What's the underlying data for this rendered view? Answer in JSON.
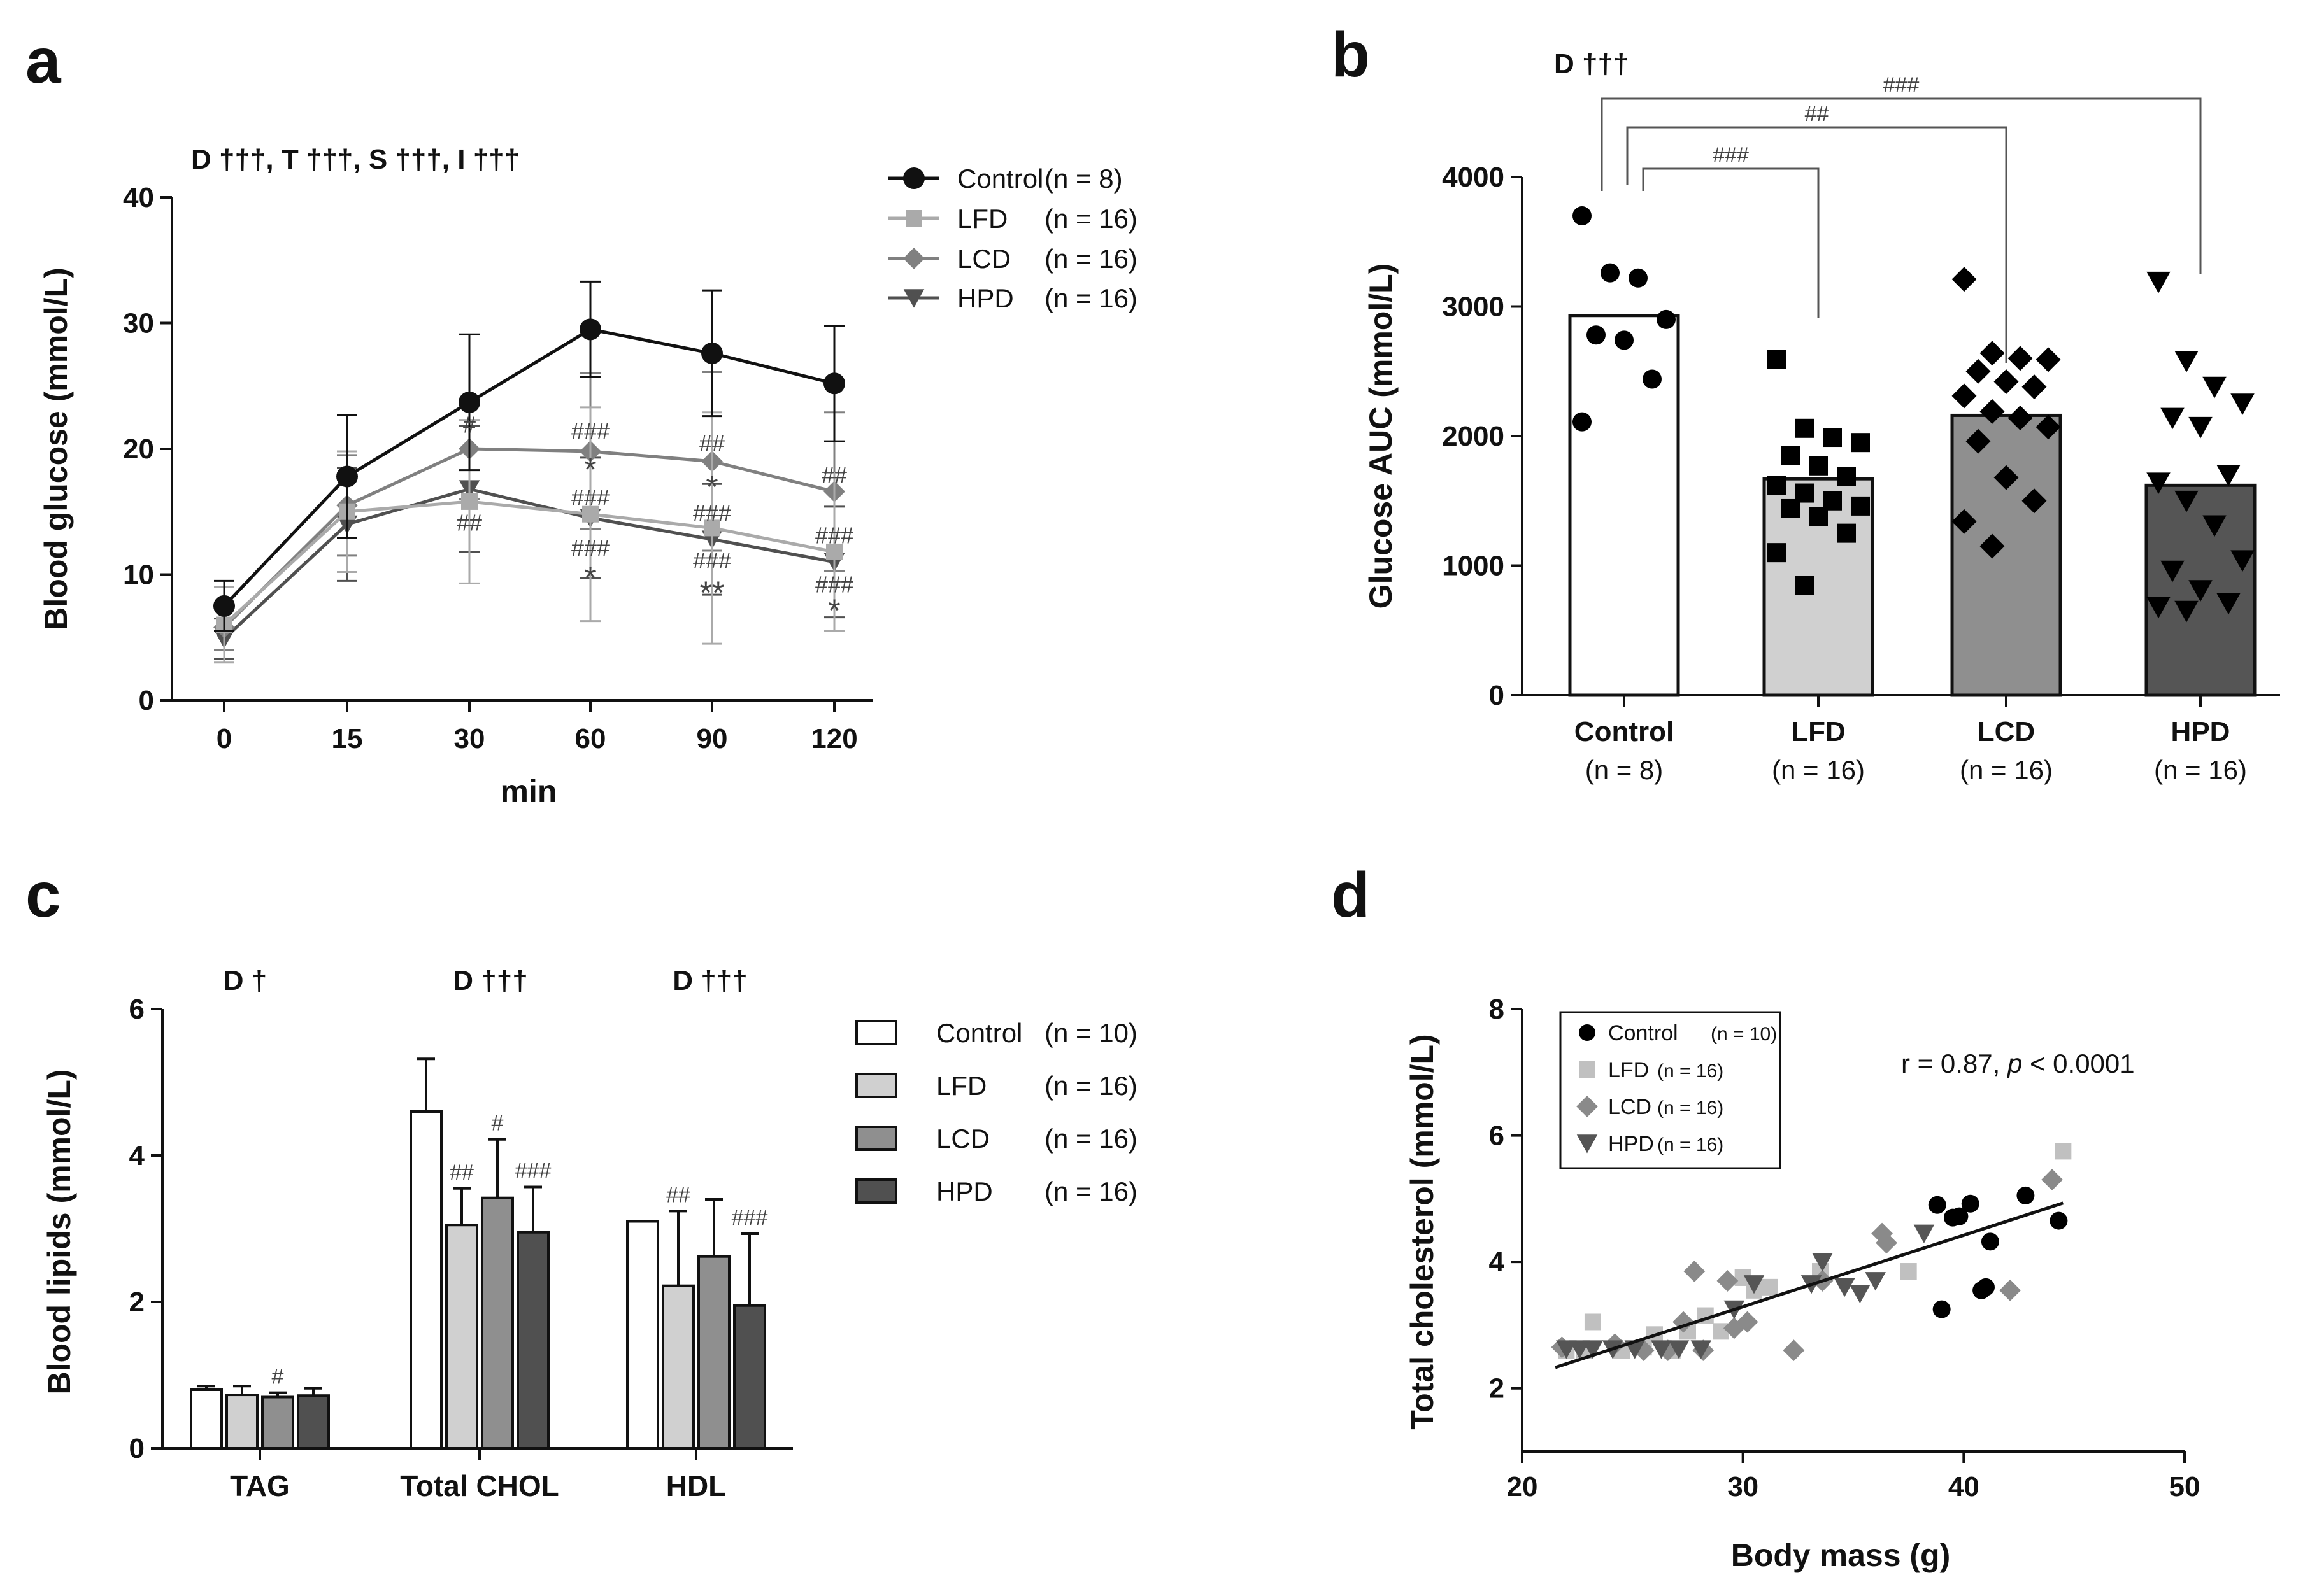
{
  "panels": {
    "a": {
      "letter": "a",
      "stats": "D †††, T †††, S †††, I †††"
    },
    "b": {
      "letter": "b",
      "stats": "D †††"
    },
    "c": {
      "letter": "c"
    },
    "d": {
      "letter": "d"
    }
  },
  "chart_data": [
    {
      "id": "a",
      "type": "line",
      "ylabel": "Blood glucose (mmol/L)",
      "xlabel": "min",
      "x_categories": [
        "0",
        "15",
        "30",
        "60",
        "90",
        "120"
      ],
      "ylim": [
        0,
        40
      ],
      "yticks": [
        "0",
        "10",
        "20",
        "30",
        "40"
      ],
      "series": [
        {
          "name": "Control",
          "n": "(n = 8)",
          "marker": "circle",
          "color": "#111111",
          "values": [
            7.5,
            17.8,
            23.7,
            29.5,
            27.6,
            25.2
          ],
          "err": [
            2.0,
            4.9,
            5.4,
            3.8,
            5.0,
            4.6
          ]
        },
        {
          "name": "LFD",
          "n": "(n = 16)",
          "marker": "square",
          "color": "#aaaaaa",
          "values": [
            6.0,
            15.0,
            15.8,
            14.8,
            13.7,
            11.8
          ],
          "err": [
            3.0,
            4.8,
            6.5,
            8.5,
            9.2,
            6.3
          ]
        },
        {
          "name": "LCD",
          "n": "(n = 16)",
          "marker": "diamond",
          "color": "#808080",
          "values": [
            5.8,
            15.5,
            20.0,
            19.8,
            19.0,
            16.6
          ],
          "err": [
            1.8,
            4.0,
            4.0,
            6.2,
            7.1,
            6.3
          ]
        },
        {
          "name": "HPD",
          "n": "(n = 16)",
          "marker": "triangle",
          "color": "#505050",
          "values": [
            4.9,
            14.0,
            16.8,
            14.5,
            12.8,
            11.0
          ],
          "err": [
            1.6,
            4.5,
            5.0,
            4.8,
            4.4,
            4.4
          ]
        }
      ],
      "annotations": [
        {
          "x": "30",
          "y": 22.0,
          "text": "#"
        },
        {
          "x": "30",
          "y": 14.2,
          "text": "##"
        },
        {
          "x": "60",
          "y": 21.5,
          "text": "###"
        },
        {
          "x": "60",
          "y": 18.2,
          "text": "*"
        },
        {
          "x": "60",
          "y": 16.2,
          "text": "###"
        },
        {
          "x": "60",
          "y": 12.2,
          "text": "###"
        },
        {
          "x": "60",
          "y": 9.6,
          "text": "*"
        },
        {
          "x": "90",
          "y": 20.5,
          "text": "##"
        },
        {
          "x": "90",
          "y": 16.8,
          "text": "*"
        },
        {
          "x": "90",
          "y": 15.0,
          "text": "###"
        },
        {
          "x": "90",
          "y": 11.2,
          "text": "###"
        },
        {
          "x": "90",
          "y": 8.4,
          "text": "**"
        },
        {
          "x": "120",
          "y": 18.0,
          "text": "##"
        },
        {
          "x": "120",
          "y": 13.2,
          "text": "###"
        },
        {
          "x": "120",
          "y": 9.3,
          "text": "###"
        },
        {
          "x": "120",
          "y": 7.0,
          "text": "*"
        }
      ]
    },
    {
      "id": "b",
      "type": "bar",
      "ylabel": "Glucose AUC (mmol/L)",
      "ylim": [
        0,
        4000
      ],
      "yticks": [
        "0",
        "1000",
        "2000",
        "3000",
        "4000"
      ],
      "categories": [
        "Control",
        "LFD",
        "LCD",
        "HPD"
      ],
      "category_n": [
        "(n = 8)",
        "(n = 16)",
        "(n = 16)",
        "(n = 16)"
      ],
      "bar_values": [
        2930,
        1670,
        2160,
        1620
      ],
      "bar_colors": [
        "#ffffff",
        "#d0d0d0",
        "#8f8f8f",
        "#555555"
      ],
      "point_markers": [
        "circle",
        "square",
        "diamond",
        "triangle"
      ],
      "points": [
        [
          3700,
          3260,
          3220,
          2900,
          2780,
          2740,
          2440,
          2110
        ],
        [
          2590,
          2060,
          1990,
          1950,
          1850,
          1770,
          1690,
          1620,
          1560,
          1500,
          1460,
          1440,
          1380,
          1250,
          1100,
          850
        ],
        [
          3210,
          2640,
          2600,
          2590,
          2500,
          2420,
          2380,
          2310,
          2190,
          2140,
          2070,
          1960,
          1680,
          1500,
          1340,
          1150
        ],
        [
          3190,
          2580,
          2380,
          2250,
          2140,
          2070,
          1700,
          1640,
          1500,
          1310,
          1040,
          960,
          810,
          710,
          680,
          650
        ]
      ],
      "brackets": [
        {
          "from": 0,
          "to": 1,
          "label": "###"
        },
        {
          "from": 0,
          "to": 2,
          "label": "##"
        },
        {
          "from": 0,
          "to": 3,
          "label": "###"
        }
      ]
    },
    {
      "id": "c",
      "type": "bar",
      "ylabel": "Blood lipids (mmol/L)",
      "ylim": [
        0,
        6
      ],
      "yticks": [
        "0",
        "2",
        "4",
        "6"
      ],
      "categories": [
        "TAG",
        "Total CHOL",
        "HDL"
      ],
      "group_stats": [
        "D †",
        "D †††",
        "D †††"
      ],
      "series": [
        {
          "name": "Control",
          "n": "(n = 10)",
          "color": "#ffffff",
          "values": [
            0.8,
            4.6,
            3.1
          ],
          "err": [
            0.05,
            0.72,
            0.0
          ]
        },
        {
          "name": "LFD",
          "n": "(n = 16)",
          "color": "#d0d0d0",
          "values": [
            0.73,
            3.05,
            2.22
          ],
          "err": [
            0.12,
            0.5,
            1.02
          ]
        },
        {
          "name": "LCD",
          "n": "(n = 16)",
          "color": "#8f8f8f",
          "values": [
            0.7,
            3.42,
            2.62
          ],
          "err": [
            0.06,
            0.8,
            0.78
          ]
        },
        {
          "name": "HPD",
          "n": "(n = 16)",
          "color": "#505050",
          "values": [
            0.72,
            2.95,
            1.95
          ],
          "err": [
            0.1,
            0.62,
            0.98
          ]
        }
      ],
      "annotations": [
        {
          "group": 0,
          "series": 2,
          "text": "#"
        },
        {
          "group": 1,
          "series": 1,
          "text": "##"
        },
        {
          "group": 1,
          "series": 2,
          "text": "#"
        },
        {
          "group": 1,
          "series": 3,
          "text": "###"
        },
        {
          "group": 2,
          "series": 1,
          "text": "##"
        },
        {
          "group": 2,
          "series": 3,
          "text": "###"
        }
      ]
    },
    {
      "id": "d",
      "type": "scatter",
      "xlabel": "Body mass (g)",
      "ylabel": "Total cholesterol (mmol/L)",
      "xlim": [
        20,
        50
      ],
      "ylim": [
        1,
        8
      ],
      "xticks": [
        "20",
        "30",
        "40",
        "50"
      ],
      "yticks": [
        "2",
        "4",
        "6",
        "8"
      ],
      "correlation": {
        "r_text": "r = 0.87, ",
        "p_symbol": "p",
        "p_text": " < 0.0001"
      },
      "fit_line": {
        "x": [
          21.5,
          44.5
        ],
        "y": [
          2.33,
          4.93
        ]
      },
      "series": [
        {
          "name": "Control",
          "n": "(n = 10)",
          "marker": "circle",
          "color": "#000000",
          "points": [
            [
              38.8,
              4.9
            ],
            [
              39.5,
              4.7
            ],
            [
              39.8,
              4.72
            ],
            [
              40.3,
              4.92
            ],
            [
              41.2,
              4.32
            ],
            [
              42.8,
              5.05
            ],
            [
              44.3,
              4.65
            ],
            [
              39.0,
              3.25
            ],
            [
              40.8,
              3.55
            ],
            [
              41.0,
              3.6
            ]
          ]
        },
        {
          "name": "LFD",
          "n": "(n = 16)",
          "marker": "square",
          "color": "#c0c0c0",
          "points": [
            [
              22.0,
              2.6
            ],
            [
              22.8,
              2.6
            ],
            [
              23.2,
              3.05
            ],
            [
              24.5,
              2.6
            ],
            [
              25.5,
              2.65
            ],
            [
              26.0,
              2.85
            ],
            [
              26.8,
              2.6
            ],
            [
              27.5,
              2.9
            ],
            [
              28.3,
              3.15
            ],
            [
              29.0,
              2.9
            ],
            [
              30.0,
              3.75
            ],
            [
              30.5,
              3.55
            ],
            [
              31.2,
              3.6
            ],
            [
              33.5,
              3.85
            ],
            [
              37.5,
              3.85
            ],
            [
              44.5,
              5.75
            ]
          ]
        },
        {
          "name": "LCD",
          "n": "(n = 16)",
          "marker": "diamond",
          "color": "#8a8a8a",
          "points": [
            [
              21.8,
              2.65
            ],
            [
              24.2,
              2.7
            ],
            [
              25.5,
              2.6
            ],
            [
              26.6,
              2.6
            ],
            [
              27.3,
              3.05
            ],
            [
              27.8,
              3.85
            ],
            [
              28.2,
              2.6
            ],
            [
              29.3,
              3.7
            ],
            [
              29.6,
              2.95
            ],
            [
              30.2,
              3.05
            ],
            [
              32.3,
              2.6
            ],
            [
              33.6,
              3.7
            ],
            [
              36.3,
              4.45
            ],
            [
              36.5,
              4.3
            ],
            [
              42.1,
              3.55
            ],
            [
              44.0,
              5.3
            ]
          ]
        },
        {
          "name": "HPD",
          "n": "(n = 16)",
          "marker": "triangle",
          "color": "#555555",
          "points": [
            [
              22.0,
              2.62
            ],
            [
              22.6,
              2.62
            ],
            [
              23.2,
              2.62
            ],
            [
              24.1,
              2.62
            ],
            [
              25.1,
              2.62
            ],
            [
              26.3,
              2.62
            ],
            [
              27.1,
              2.62
            ],
            [
              28.1,
              2.62
            ],
            [
              29.6,
              3.25
            ],
            [
              30.5,
              3.65
            ],
            [
              33.1,
              3.65
            ],
            [
              33.6,
              4.0
            ],
            [
              34.6,
              3.6
            ],
            [
              35.3,
              3.5
            ],
            [
              36.0,
              3.7
            ],
            [
              38.2,
              4.45
            ]
          ]
        }
      ]
    }
  ]
}
